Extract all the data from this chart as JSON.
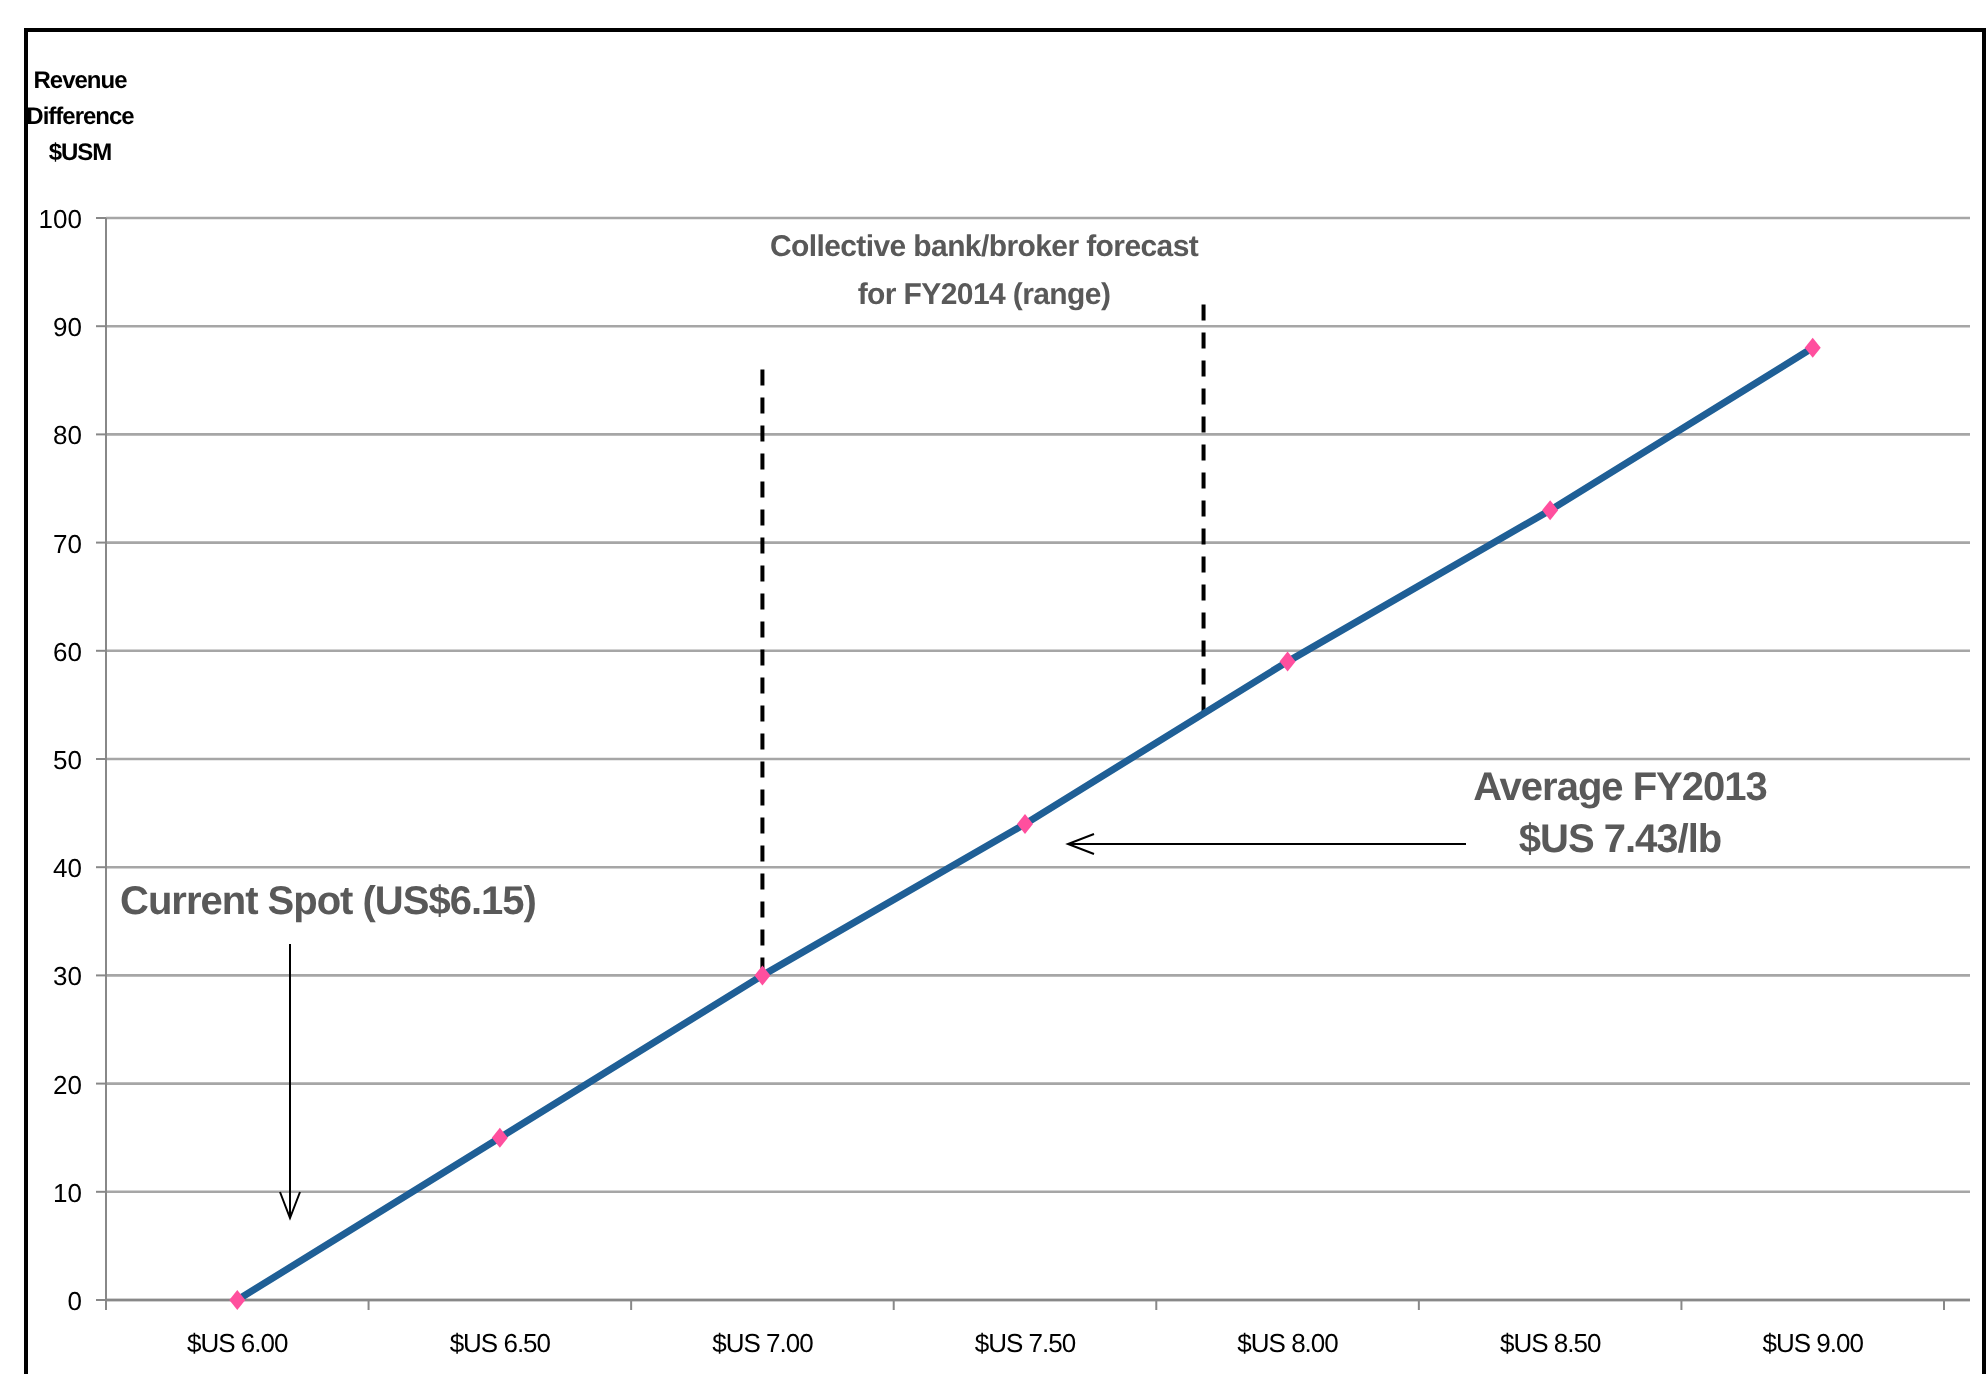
{
  "chart_data": {
    "type": "line",
    "ylabel": "Revenue\nDifference\n$USM",
    "categories": [
      "$US 6.00",
      "$US 6.50",
      "$US 7.00",
      "$US 7.50",
      "$US 8.00",
      "$US 8.50",
      "$US 9.00"
    ],
    "series": [
      {
        "color": "#1f5f96",
        "values": [
          0,
          15,
          30,
          44,
          59,
          73,
          88
        ],
        "marker": "none"
      },
      {
        "type": "scatter",
        "color": "#ff4f9e",
        "values": [
          0,
          15,
          30,
          44,
          59,
          73,
          88
        ],
        "marker": "diamond"
      }
    ],
    "ylim": [
      0,
      100
    ],
    "yticks": [
      0,
      10,
      20,
      30,
      40,
      50,
      60,
      70,
      80,
      90,
      100
    ],
    "grid": "y",
    "line_style": "solid",
    "ref_lines": [
      {
        "axis": "x",
        "value": "$US 7.00",
        "line_style": "dashed",
        "color": "#000000"
      }
    ],
    "annotations": [
      "Collective bank/broker forecast\nfor FY2014 (range)",
      "Current Spot (US$6.15)",
      "Average FY2013\n$US 7.43/lb"
    ]
  }
}
